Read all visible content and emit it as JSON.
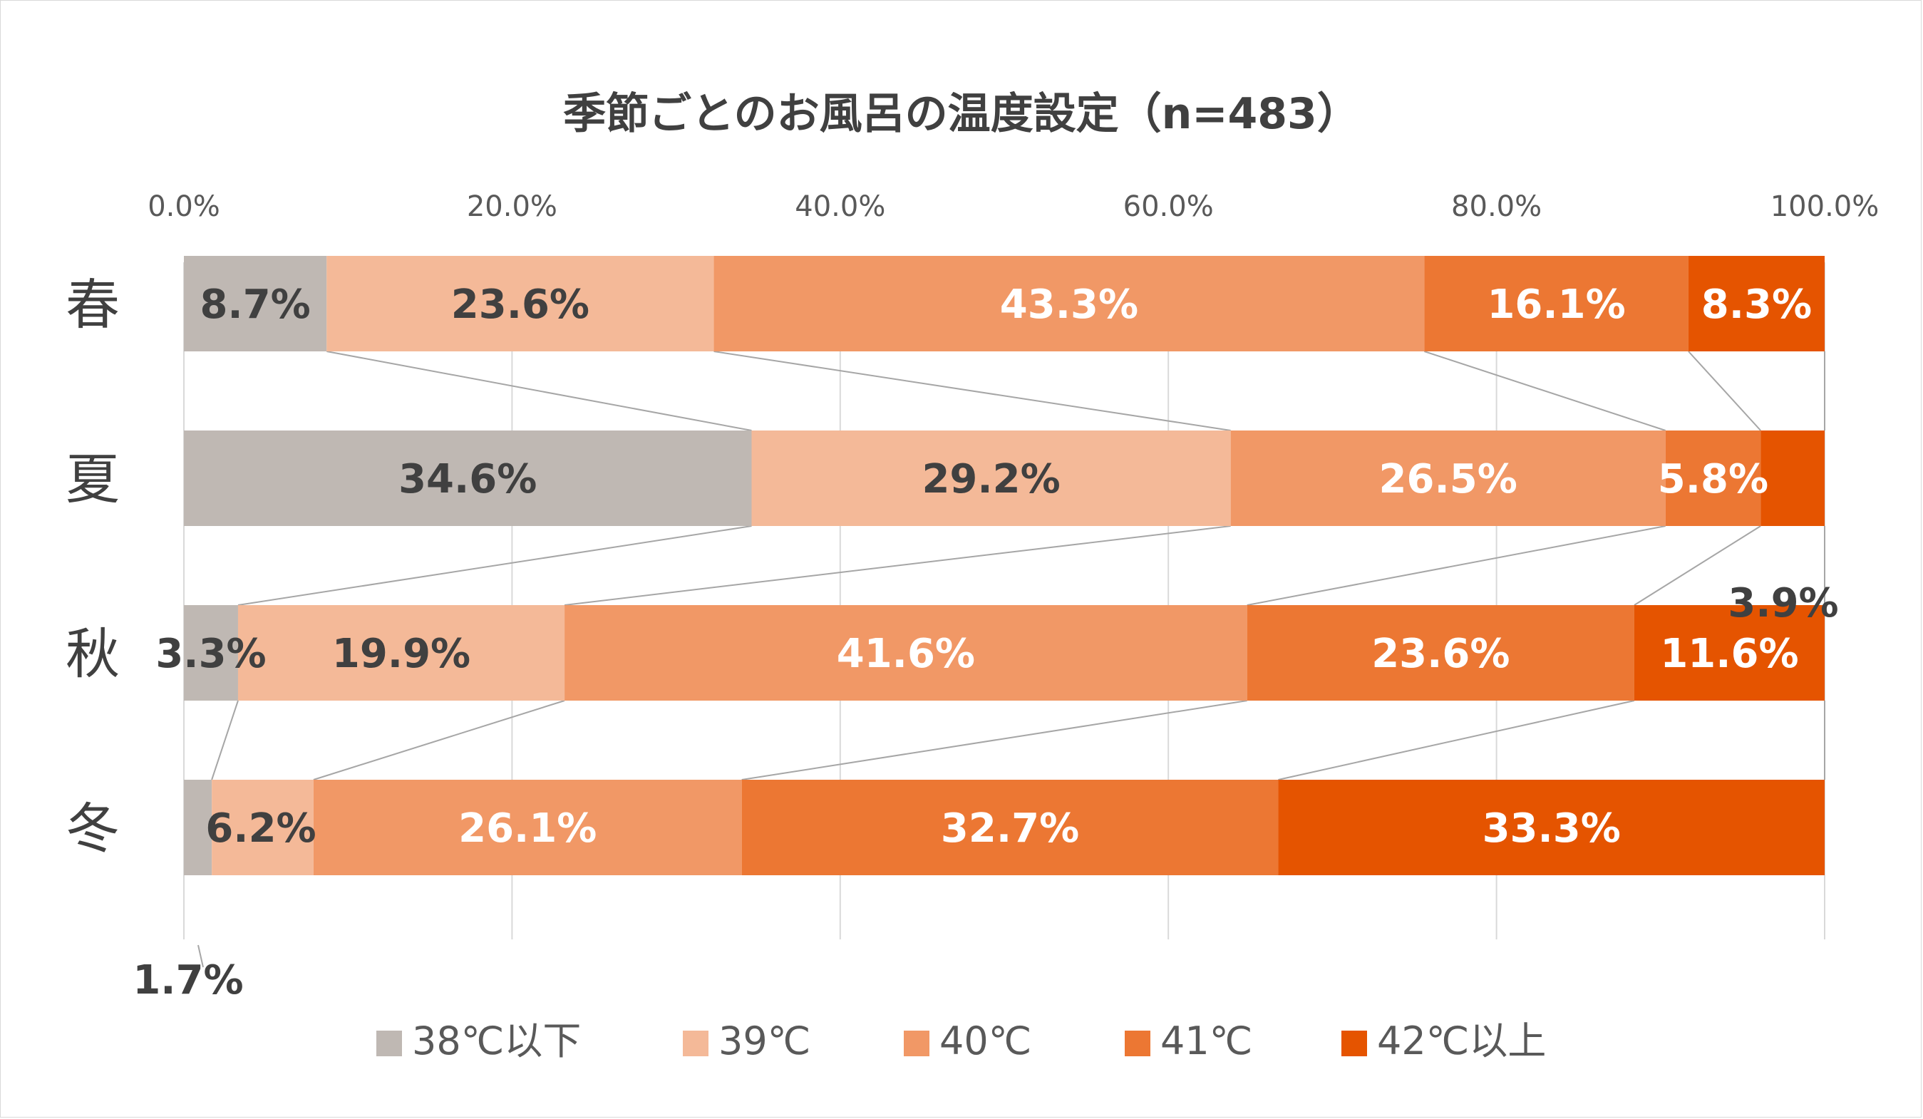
{
  "chart_data": {
    "type": "bar",
    "orientation": "horizontal",
    "stacked": "percent",
    "title": "季節ごとのお風呂の温度設定（n=483）",
    "categories": [
      "春",
      "夏",
      "秋",
      "冬"
    ],
    "series": [
      {
        "name": "38℃以下",
        "color": "#bfb8b3",
        "values": [
          8.7,
          34.6,
          3.3,
          1.7
        ],
        "labels": [
          "8.7%",
          "34.6%",
          "3.3%",
          "1.7%"
        ]
      },
      {
        "name": "39℃",
        "color": "#f4b998",
        "values": [
          23.6,
          29.2,
          19.9,
          6.2
        ],
        "labels": [
          "23.6%",
          "29.2%",
          "19.9%",
          "6.2%"
        ]
      },
      {
        "name": "40℃",
        "color": "#f19866",
        "values": [
          43.3,
          26.5,
          41.6,
          26.1
        ],
        "labels": [
          "43.3%",
          "26.5%",
          "41.6%",
          "26.1%"
        ]
      },
      {
        "name": "41℃",
        "color": "#ec7733",
        "values": [
          16.1,
          5.8,
          23.6,
          32.7
        ],
        "labels": [
          "16.1%",
          "5.8%",
          "23.6%",
          "32.7%"
        ]
      },
      {
        "name": "42℃以上",
        "color": "#e55400",
        "values": [
          8.3,
          3.9,
          11.6,
          33.3
        ],
        "labels": [
          "8.3%",
          "3.9%",
          "11.6%",
          "33.3%"
        ]
      }
    ],
    "x_axis": {
      "position": "top",
      "range": [
        0,
        100
      ],
      "tick_labels": [
        "0.0%",
        "20.0%",
        "40.0%",
        "60.0%",
        "80.0%",
        "100.0%"
      ]
    },
    "series_lines": true,
    "grid": true,
    "legend": {
      "position": "bottom"
    },
    "colors": {
      "text_dark": "#404040",
      "text_light": "#ffffff",
      "grid": "#d9d9d9",
      "series_line": "#a6a6a6"
    }
  }
}
